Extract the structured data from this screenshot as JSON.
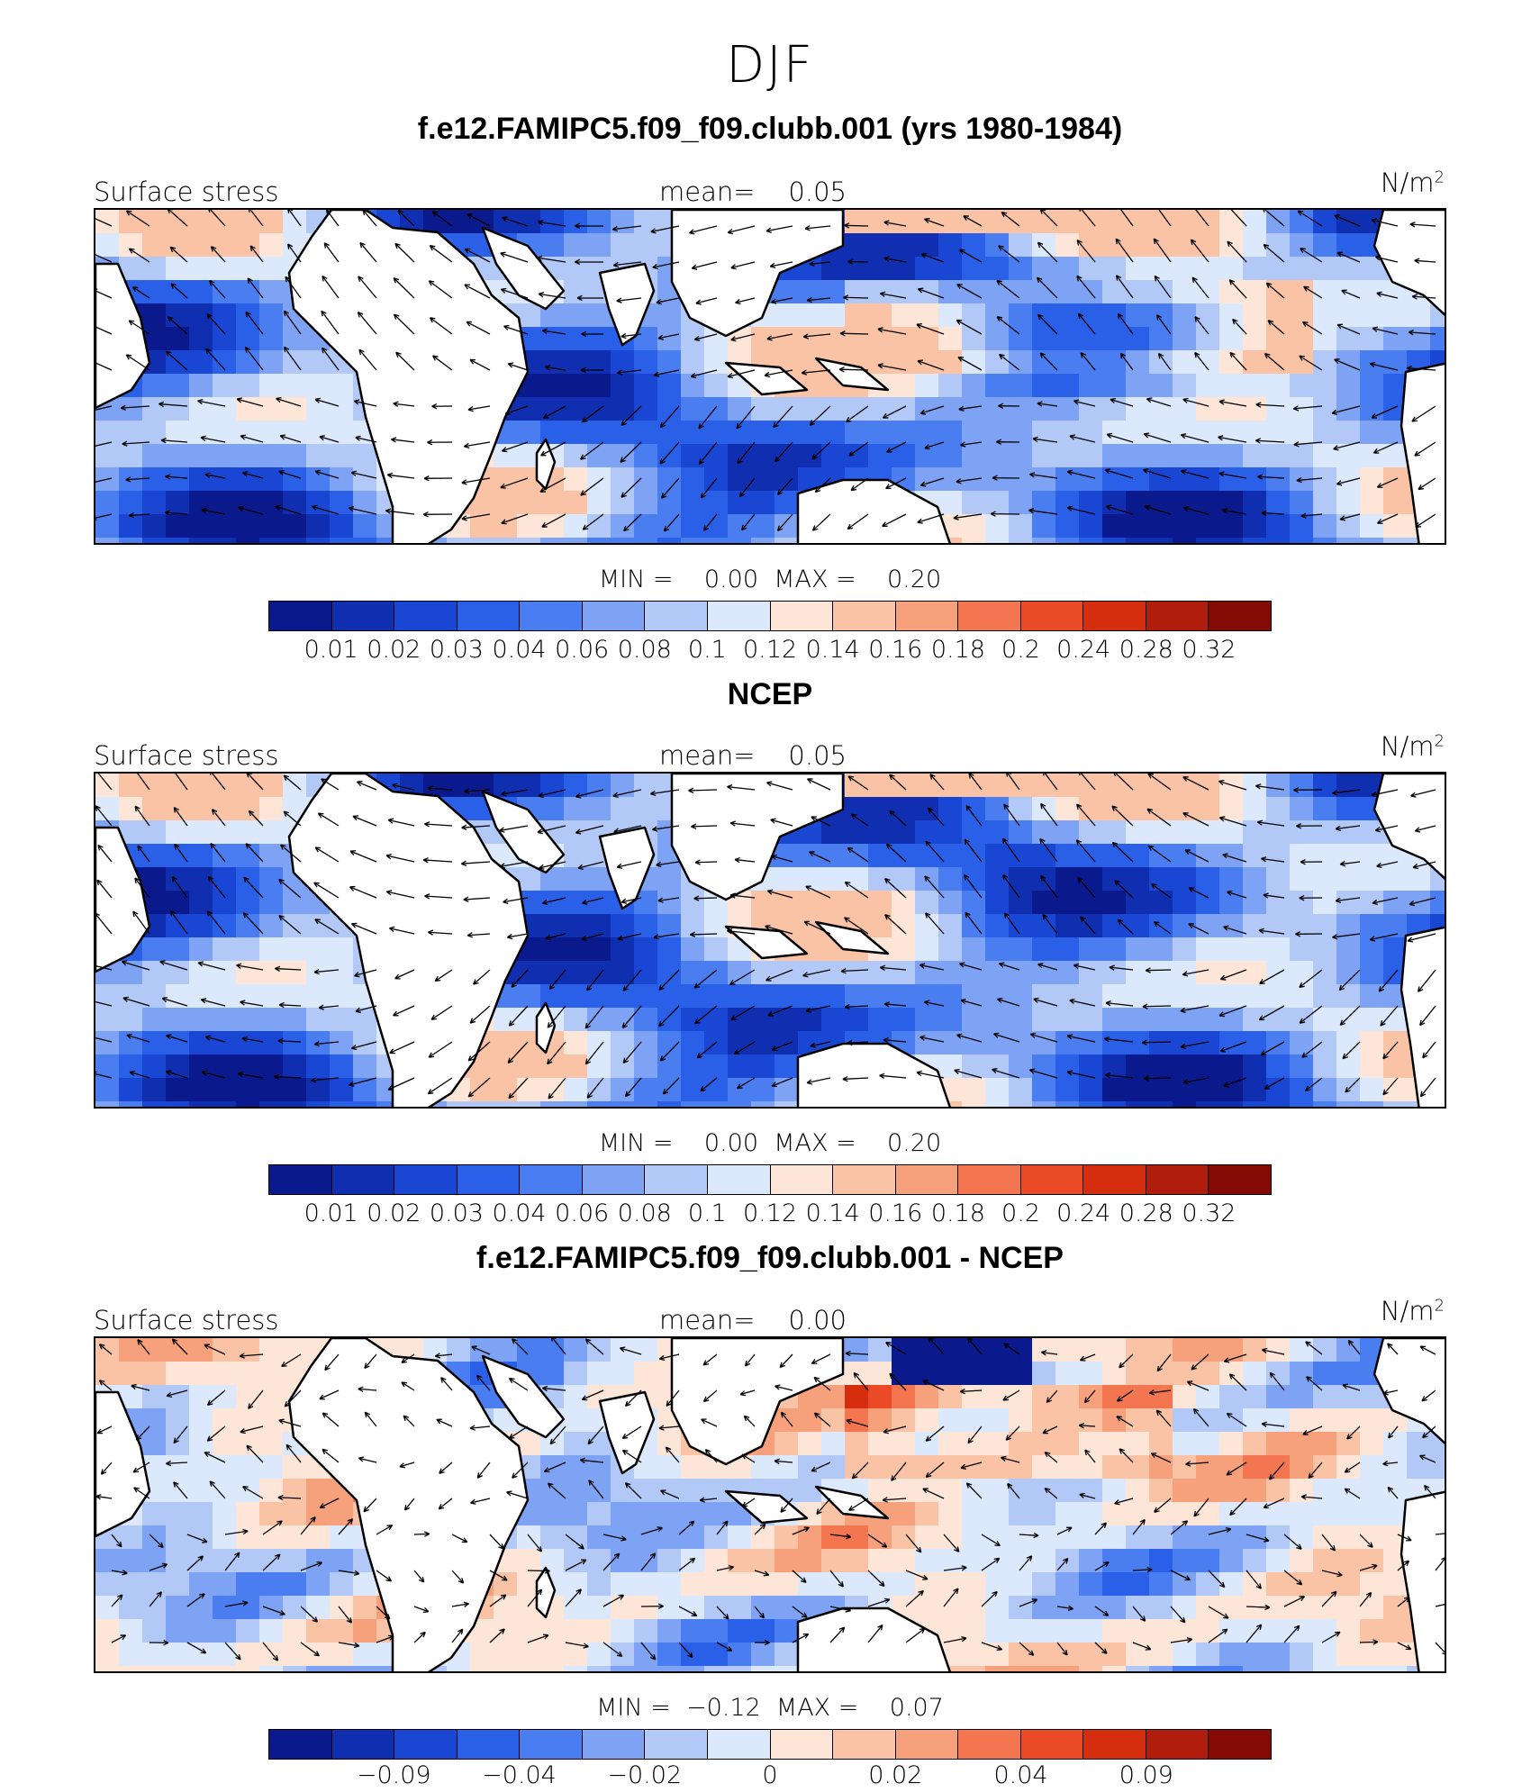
{
  "title": "DJF",
  "colorbar_colors": [
    "#0a1a8c",
    "#0f2fb0",
    "#1a46d4",
    "#2a5fe8",
    "#4a7ef0",
    "#7fa3f4",
    "#b2c9f8",
    "#dce8fb",
    "#fde6d8",
    "#fbc3a6",
    "#f7a07c",
    "#f37650",
    "#ea4a26",
    "#d52e0e",
    "#b01d0c",
    "#850a06"
  ],
  "colorbar_ticks": [
    "0.01",
    "0.02",
    "0.03",
    "0.04",
    "0.06",
    "0.08",
    "0.1",
    "0.12",
    "0.14",
    "0.16",
    "0.18",
    "0.2",
    "0.24",
    "0.28",
    "0.32"
  ],
  "diff_colorbar_ticks": [
    "−0.09",
    "−0.04",
    "−0.02",
    "0",
    "0.02",
    "0.04",
    "0.09"
  ],
  "panels": [
    {
      "title": "f.e12.FAMIPC5.f09_f09.clubb.001 (yrs 1980-1984)",
      "variable": "Surface stress",
      "mean_label": "mean=",
      "mean_value": "0.05",
      "units": "N/m",
      "units_exp": "2",
      "min_label": "MIN =",
      "min_value": "0.00",
      "max_label": "MAX =",
      "max_value": "0.20"
    },
    {
      "title": "NCEP",
      "variable": "Surface stress",
      "mean_label": "mean=",
      "mean_value": "0.05",
      "units": "N/m",
      "units_exp": "2",
      "min_label": "MIN =",
      "min_value": "0.00",
      "max_label": "MAX =",
      "max_value": "0.20"
    },
    {
      "title": "f.e12.FAMIPC5.f09_f09.clubb.001 - NCEP",
      "variable": "Surface stress",
      "mean_label": "mean=",
      "mean_value": "0.00",
      "units": "N/m",
      "units_exp": "2",
      "min_label": "MIN =",
      "min_value": "−0.12",
      "max_label": "MAX =",
      "max_value": "0.07"
    }
  ],
  "chart_data": [
    {
      "type": "heatmap",
      "title": "f.e12.FAMIPC5.f09_f09.clubb.001 (yrs 1980-1984)",
      "variable": "Surface stress",
      "units": "N/m2",
      "mean": 0.05,
      "min": 0.0,
      "max": 0.2,
      "overlay": "wind stress vectors",
      "colorbar_levels": [
        0.01,
        0.02,
        0.03,
        0.04,
        0.06,
        0.08,
        0.1,
        0.12,
        0.14,
        0.16,
        0.18,
        0.2,
        0.24,
        0.28,
        0.32
      ]
    },
    {
      "type": "heatmap",
      "title": "NCEP",
      "variable": "Surface stress",
      "units": "N/m2",
      "mean": 0.05,
      "min": 0.0,
      "max": 0.2,
      "overlay": "wind stress vectors",
      "colorbar_levels": [
        0.01,
        0.02,
        0.03,
        0.04,
        0.06,
        0.08,
        0.1,
        0.12,
        0.14,
        0.16,
        0.18,
        0.2,
        0.24,
        0.28,
        0.32
      ]
    },
    {
      "type": "heatmap",
      "title": "f.e12.FAMIPC5.f09_f09.clubb.001 - NCEP",
      "variable": "Surface stress",
      "units": "N/m2",
      "mean": 0.0,
      "min": -0.12,
      "max": 0.07,
      "overlay": "wind stress difference vectors",
      "colorbar_labels": [
        -0.09,
        -0.04,
        -0.02,
        0,
        0.02,
        0.04,
        0.09
      ]
    }
  ]
}
